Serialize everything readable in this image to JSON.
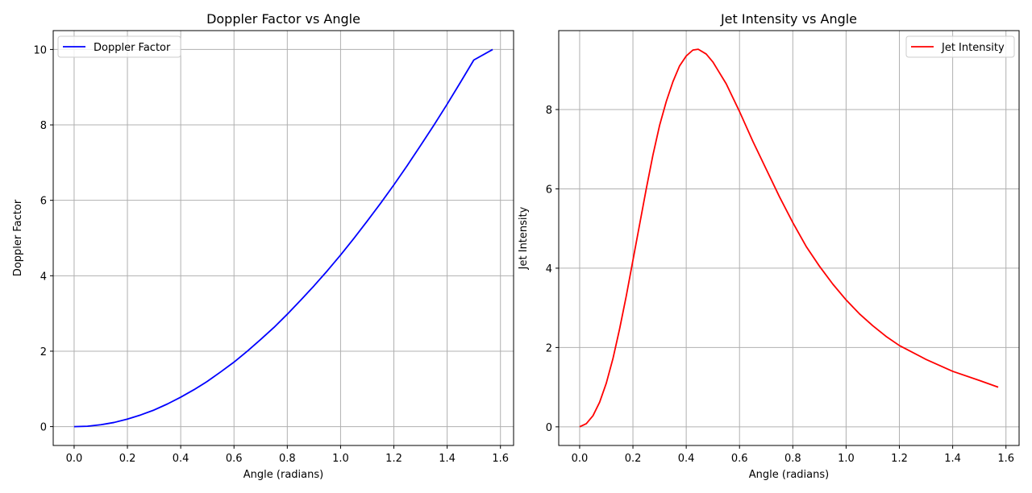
{
  "chart_data": [
    {
      "type": "line",
      "title": "Doppler Factor vs Angle",
      "xlabel": "Angle (radians)",
      "ylabel": "Doppler Factor",
      "xlim": [
        -0.0785,
        1.6493
      ],
      "ylim": [
        -0.5,
        10.5
      ],
      "xticks": [
        0.0,
        0.2,
        0.4,
        0.6,
        0.8,
        1.0,
        1.2,
        1.4,
        1.6
      ],
      "xtick_labels": [
        "0.0",
        "0.2",
        "0.4",
        "0.6",
        "0.8",
        "1.0",
        "1.2",
        "1.4",
        "1.6"
      ],
      "yticks": [
        0,
        2,
        4,
        6,
        8,
        10
      ],
      "ytick_labels": [
        "0",
        "2",
        "4",
        "6",
        "8",
        "10"
      ],
      "grid": true,
      "legend_position": "upper-left",
      "series": [
        {
          "name": "Doppler Factor",
          "color": "#0000ff",
          "x": [
            0.0,
            0.05,
            0.1,
            0.15,
            0.2,
            0.25,
            0.3,
            0.35,
            0.4,
            0.45,
            0.5,
            0.55,
            0.6,
            0.65,
            0.7,
            0.75,
            0.8,
            0.85,
            0.9,
            0.95,
            1.0,
            1.05,
            1.1,
            1.15,
            1.2,
            1.25,
            1.3,
            1.35,
            1.4,
            1.45,
            1.5,
            1.5708
          ],
          "y": [
            0.0,
            0.01,
            0.05,
            0.11,
            0.2,
            0.31,
            0.44,
            0.6,
            0.78,
            0.98,
            1.2,
            1.45,
            1.71,
            2.0,
            2.31,
            2.63,
            2.98,
            3.35,
            3.73,
            4.13,
            4.55,
            4.99,
            5.45,
            5.92,
            6.41,
            6.92,
            7.45,
            7.99,
            8.55,
            9.13,
            9.72,
            10.0
          ]
        }
      ]
    },
    {
      "type": "line",
      "title": "Jet Intensity vs Angle",
      "xlabel": "Angle (radians)",
      "ylabel": "Jet Intensity",
      "xlim": [
        -0.0785,
        1.6493
      ],
      "ylim": [
        -0.47,
        9.99
      ],
      "xticks": [
        0.0,
        0.2,
        0.4,
        0.6,
        0.8,
        1.0,
        1.2,
        1.4,
        1.6
      ],
      "xtick_labels": [
        "0.0",
        "0.2",
        "0.4",
        "0.6",
        "0.8",
        "1.0",
        "1.2",
        "1.4",
        "1.6"
      ],
      "yticks": [
        0,
        2,
        4,
        6,
        8
      ],
      "ytick_labels": [
        "0",
        "2",
        "4",
        "6",
        "8"
      ],
      "grid": true,
      "legend_position": "upper-right",
      "series": [
        {
          "name": "Jet Intensity",
          "color": "#ff0000",
          "x": [
            0.0,
            0.025,
            0.05,
            0.075,
            0.1,
            0.125,
            0.15,
            0.175,
            0.2,
            0.225,
            0.25,
            0.275,
            0.3,
            0.325,
            0.35,
            0.375,
            0.4,
            0.425,
            0.445,
            0.475,
            0.5,
            0.55,
            0.6,
            0.65,
            0.7,
            0.75,
            0.8,
            0.85,
            0.9,
            0.95,
            1.0,
            1.05,
            1.1,
            1.15,
            1.2,
            1.3,
            1.4,
            1.5,
            1.5708
          ],
          "y": [
            0.0,
            0.08,
            0.28,
            0.62,
            1.1,
            1.72,
            2.47,
            3.3,
            4.2,
            5.1,
            6.0,
            6.85,
            7.6,
            8.2,
            8.7,
            9.1,
            9.35,
            9.5,
            9.52,
            9.4,
            9.2,
            8.65,
            7.95,
            7.2,
            6.5,
            5.8,
            5.15,
            4.55,
            4.05,
            3.6,
            3.2,
            2.85,
            2.55,
            2.28,
            2.05,
            1.7,
            1.4,
            1.17,
            1.0
          ]
        }
      ]
    }
  ]
}
